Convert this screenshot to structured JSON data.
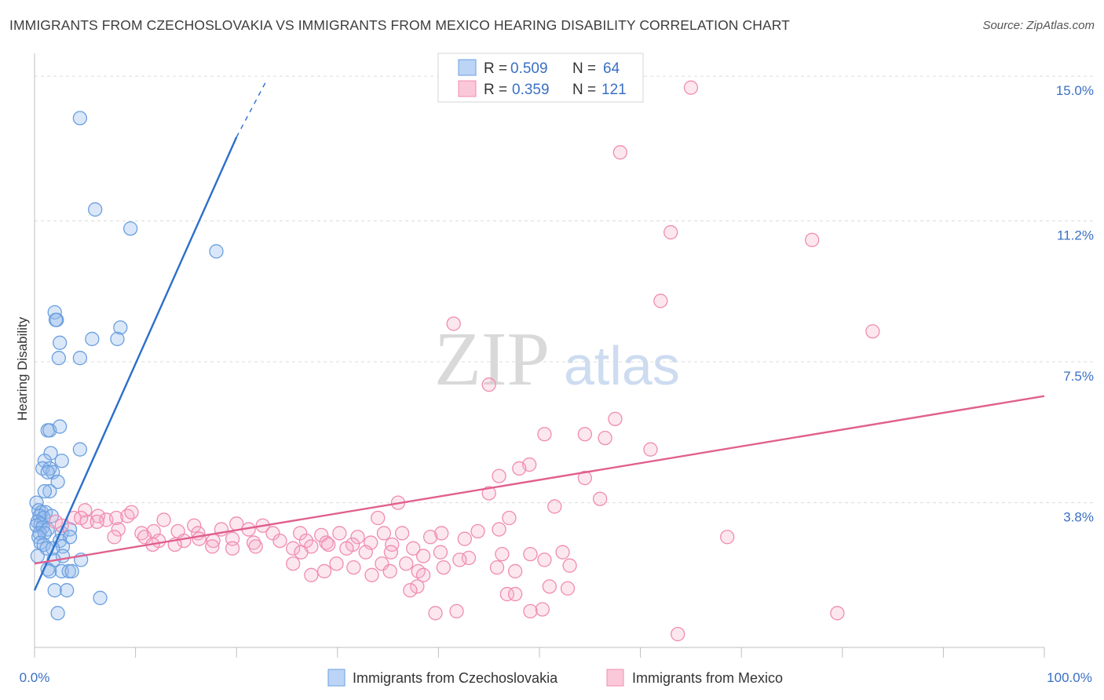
{
  "header": {
    "title": "IMMIGRANTS FROM CZECHOSLOVAKIA VS IMMIGRANTS FROM MEXICO HEARING DISABILITY CORRELATION CHART",
    "source": "Source: ZipAtlas.com"
  },
  "watermark": {
    "zip": "ZIP",
    "atlas": "atlas"
  },
  "legend": {
    "r_label": "R =",
    "n_label": "N =",
    "items": [
      {
        "r": "0.509",
        "n": "64",
        "color": "#6a9fe0"
      },
      {
        "r": "0.359",
        "n": "121",
        "color": "#f08cb0"
      }
    ]
  },
  "bottom_legend": [
    "Immigrants from Czechoslovakia",
    "Immigrants from Mexico"
  ],
  "chart_data": {
    "type": "scatter",
    "title": "IMMIGRANTS FROM CZECHOSLOVAKIA VS IMMIGRANTS FROM MEXICO HEARING DISABILITY CORRELATION CHART",
    "xlabel": "",
    "ylabel": "Hearing Disability",
    "xlim": [
      0,
      100
    ],
    "ylim": [
      0,
      15.6
    ],
    "x_tick_labels": [
      "0.0%",
      "100.0%"
    ],
    "y_ticks": [
      3.8,
      7.5,
      11.2,
      15.0
    ],
    "y_tick_labels": [
      "3.8%",
      "7.5%",
      "11.2%",
      "15.0%"
    ],
    "grid": true,
    "legend_position": "top-center",
    "series": [
      {
        "name": "Immigrants from Czechoslovakia",
        "color": "#6a9fe0",
        "line_color": "#2a6fcc",
        "trend": {
          "x": [
            0,
            20
          ],
          "y": [
            1.5,
            13.4
          ],
          "dashed_to": [
            23,
            14.9
          ]
        },
        "points": [
          [
            4.5,
            13.9
          ],
          [
            6,
            11.5
          ],
          [
            9.5,
            11.0
          ],
          [
            18,
            10.4
          ],
          [
            2,
            8.8
          ],
          [
            2.2,
            8.6
          ],
          [
            2.1,
            8.6
          ],
          [
            8.5,
            8.4
          ],
          [
            5.7,
            8.1
          ],
          [
            8.2,
            8.1
          ],
          [
            2.5,
            8.0
          ],
          [
            2.4,
            7.6
          ],
          [
            4.5,
            7.6
          ],
          [
            1.3,
            5.7
          ],
          [
            1.5,
            5.7
          ],
          [
            2.5,
            5.8
          ],
          [
            4.5,
            5.2
          ],
          [
            1.6,
            5.1
          ],
          [
            1,
            4.9
          ],
          [
            2.7,
            4.9
          ],
          [
            0.8,
            4.7
          ],
          [
            1.5,
            4.7
          ],
          [
            1.8,
            4.6
          ],
          [
            1.3,
            4.6
          ],
          [
            2.3,
            4.35
          ],
          [
            1.5,
            4.1
          ],
          [
            1,
            4.1
          ],
          [
            0.2,
            3.8
          ],
          [
            0.4,
            3.6
          ],
          [
            0.7,
            3.55
          ],
          [
            1.1,
            3.55
          ],
          [
            0.5,
            3.45
          ],
          [
            0.9,
            3.4
          ],
          [
            0.3,
            3.3
          ],
          [
            0.6,
            3.25
          ],
          [
            0.2,
            3.2
          ],
          [
            0.8,
            3.15
          ],
          [
            1.3,
            3.1
          ],
          [
            0.5,
            3.0
          ],
          [
            1.0,
            3.0
          ],
          [
            0.4,
            2.9
          ],
          [
            2.7,
            3.0
          ],
          [
            3.5,
            3.1
          ],
          [
            3.5,
            2.9
          ],
          [
            2.5,
            2.8
          ],
          [
            0.6,
            2.75
          ],
          [
            0.9,
            2.7
          ],
          [
            2.8,
            2.65
          ],
          [
            1.8,
            2.6
          ],
          [
            1.2,
            2.6
          ],
          [
            0.3,
            2.4
          ],
          [
            2.8,
            2.4
          ],
          [
            4.6,
            2.3
          ],
          [
            1.9,
            2.3
          ],
          [
            1.3,
            2.05
          ],
          [
            1.5,
            2.0
          ],
          [
            2.7,
            2.0
          ],
          [
            3.4,
            2.0
          ],
          [
            3.7,
            2.0
          ],
          [
            2,
            1.5
          ],
          [
            3.2,
            1.5
          ],
          [
            6.5,
            1.3
          ],
          [
            2.3,
            0.9
          ],
          [
            1.7,
            3.45
          ]
        ]
      },
      {
        "name": "Immigrants from Mexico",
        "color": "#f08cb0",
        "line_color": "#e0608e",
        "trend": {
          "x": [
            0,
            100
          ],
          "y": [
            2.2,
            6.6
          ]
        },
        "points": [
          [
            65,
            14.7
          ],
          [
            58,
            13.0
          ],
          [
            63,
            10.9
          ],
          [
            77,
            10.7
          ],
          [
            62,
            9.1
          ],
          [
            83,
            8.3
          ],
          [
            41.5,
            8.5
          ],
          [
            45,
            6.9
          ],
          [
            57.5,
            6.0
          ],
          [
            50.5,
            5.6
          ],
          [
            54.5,
            5.6
          ],
          [
            56.5,
            5.5
          ],
          [
            61,
            5.2
          ],
          [
            49,
            4.8
          ],
          [
            48,
            4.7
          ],
          [
            46,
            4.5
          ],
          [
            54.5,
            4.45
          ],
          [
            45,
            4.05
          ],
          [
            36,
            3.8
          ],
          [
            51.5,
            3.7
          ],
          [
            56,
            3.9
          ],
          [
            47,
            3.4
          ],
          [
            34,
            3.4
          ],
          [
            5,
            3.6
          ],
          [
            6.3,
            3.45
          ],
          [
            7.1,
            3.35
          ],
          [
            8.1,
            3.4
          ],
          [
            9.2,
            3.45
          ],
          [
            5.2,
            3.3
          ],
          [
            3.9,
            3.4
          ],
          [
            4.6,
            3.4
          ],
          [
            6.2,
            3.3
          ],
          [
            2.1,
            3.3
          ],
          [
            2.7,
            3.2
          ],
          [
            12.8,
            3.35
          ],
          [
            15.8,
            3.2
          ],
          [
            20,
            3.25
          ],
          [
            22.6,
            3.2
          ],
          [
            8.3,
            3.1
          ],
          [
            11.8,
            3.05
          ],
          [
            10.6,
            3.0
          ],
          [
            14.2,
            3.05
          ],
          [
            16.2,
            3.0
          ],
          [
            18.5,
            3.1
          ],
          [
            21.2,
            3.1
          ],
          [
            23.6,
            3.0
          ],
          [
            26.3,
            3.0
          ],
          [
            28.4,
            2.95
          ],
          [
            30.2,
            3.0
          ],
          [
            32,
            2.9
          ],
          [
            34.6,
            3.0
          ],
          [
            36.4,
            3.0
          ],
          [
            40.3,
            3.0
          ],
          [
            42.6,
            2.85
          ],
          [
            43.9,
            3.05
          ],
          [
            46,
            3.1
          ],
          [
            39.2,
            2.9
          ],
          [
            10.9,
            2.9
          ],
          [
            7.9,
            2.9
          ],
          [
            12.3,
            2.8
          ],
          [
            14.8,
            2.8
          ],
          [
            16.3,
            2.85
          ],
          [
            17.7,
            2.8
          ],
          [
            19.6,
            2.85
          ],
          [
            21.7,
            2.75
          ],
          [
            24.3,
            2.8
          ],
          [
            26.9,
            2.8
          ],
          [
            28.9,
            2.75
          ],
          [
            31.5,
            2.7
          ],
          [
            33.3,
            2.75
          ],
          [
            35.4,
            2.7
          ],
          [
            37.5,
            2.6
          ],
          [
            40.2,
            2.5
          ],
          [
            11.7,
            2.7
          ],
          [
            13.9,
            2.7
          ],
          [
            17.6,
            2.65
          ],
          [
            19.6,
            2.6
          ],
          [
            21.9,
            2.65
          ],
          [
            25.6,
            2.6
          ],
          [
            27.4,
            2.65
          ],
          [
            29.1,
            2.7
          ],
          [
            30.9,
            2.6
          ],
          [
            32.8,
            2.5
          ],
          [
            35.3,
            2.5
          ],
          [
            38.5,
            2.4
          ],
          [
            43,
            2.35
          ],
          [
            46.3,
            2.45
          ],
          [
            49.1,
            2.45
          ],
          [
            50.5,
            2.3
          ],
          [
            52.3,
            2.5
          ],
          [
            42.1,
            2.3
          ],
          [
            45.8,
            2.1
          ],
          [
            47.6,
            2.0
          ],
          [
            40.5,
            2.1
          ],
          [
            38,
            2.0
          ],
          [
            34.4,
            2.2
          ],
          [
            36.8,
            2.2
          ],
          [
            35.2,
            2.0
          ],
          [
            31.6,
            2.1
          ],
          [
            28.7,
            2.0
          ],
          [
            29.9,
            2.2
          ],
          [
            27.4,
            1.9
          ],
          [
            25.6,
            2.2
          ],
          [
            26.4,
            2.5
          ],
          [
            33.4,
            1.9
          ],
          [
            38.5,
            1.9
          ],
          [
            37.9,
            1.6
          ],
          [
            37.2,
            1.5
          ],
          [
            46.8,
            1.4
          ],
          [
            51,
            1.6
          ],
          [
            47.6,
            1.4
          ],
          [
            52.8,
            1.55
          ],
          [
            50.3,
            1.0
          ],
          [
            49.1,
            0.95
          ],
          [
            41.8,
            0.95
          ],
          [
            39.7,
            0.9
          ],
          [
            79.5,
            0.9
          ],
          [
            63.7,
            0.35
          ],
          [
            68.6,
            2.9
          ],
          [
            53,
            2.15
          ],
          [
            9.6,
            3.55
          ]
        ]
      }
    ]
  }
}
